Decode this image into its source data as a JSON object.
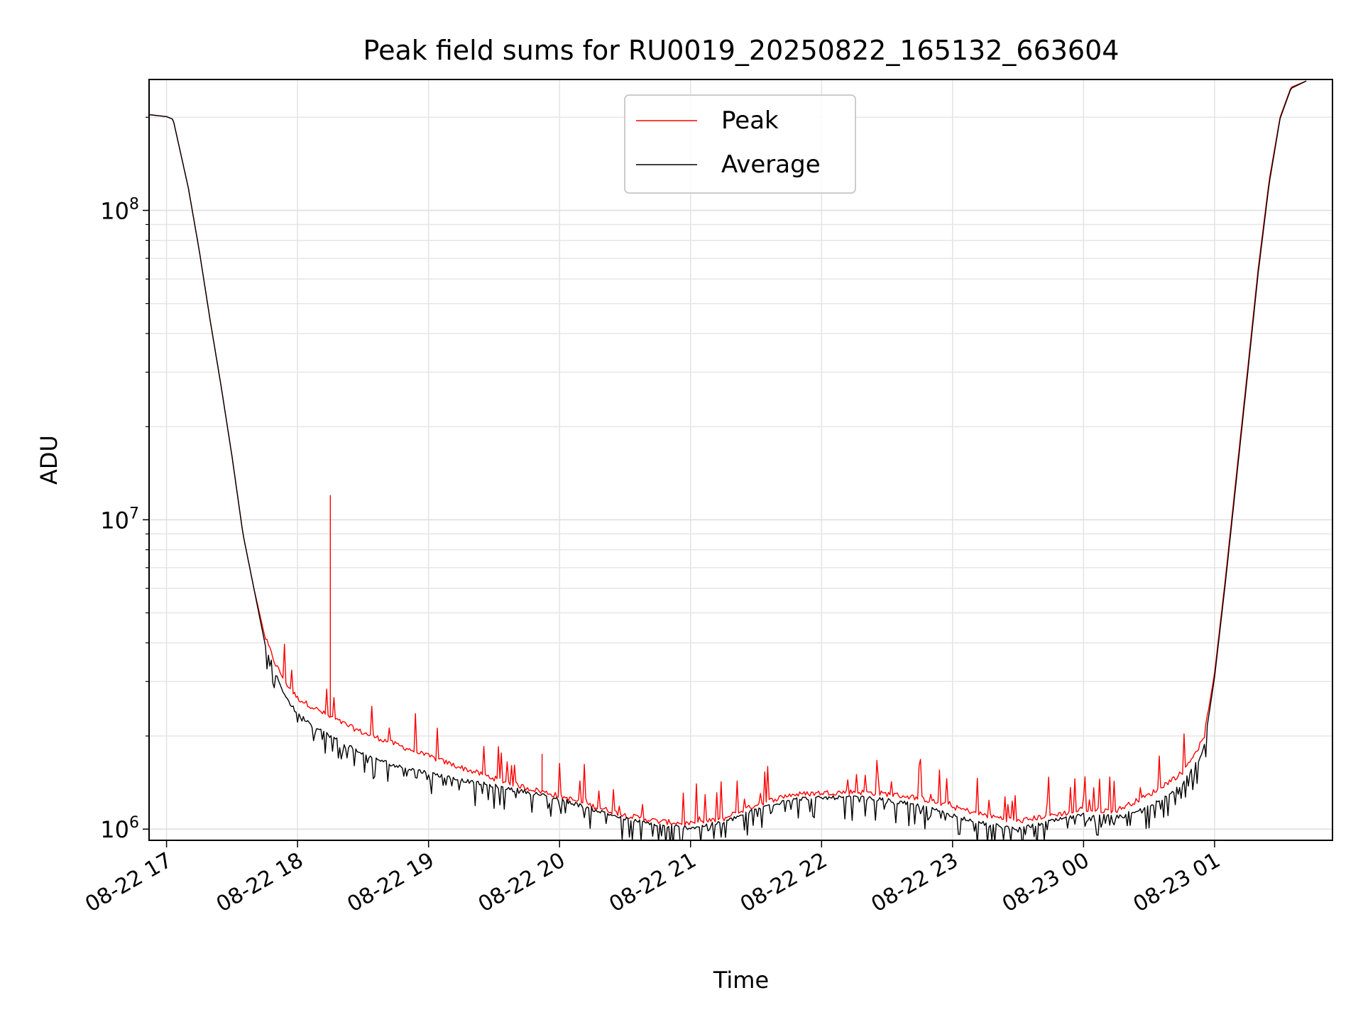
{
  "chart_data": {
    "type": "line",
    "title": "Peak field sums for RU0019_20250822_165132_663604",
    "xlabel": "Time",
    "ylabel": "ADU",
    "yscale": "log",
    "ylim": [
      920000,
      265000000
    ],
    "xlim": [
      "2025-08-22 16:52",
      "2025-08-23 01:54"
    ],
    "grid": "on (major and minor y)",
    "legend_position": "upper center",
    "x_ticks": [
      "08-22 17",
      "08-22 18",
      "08-22 19",
      "08-22 20",
      "08-22 21",
      "08-22 22",
      "08-22 23",
      "08-23 00",
      "08-23 01"
    ],
    "y_ticks": [
      {
        "value": 1000000,
        "base": "10",
        "exp": "6"
      },
      {
        "value": 10000000,
        "base": "10",
        "exp": "7"
      },
      {
        "value": 100000000,
        "base": "10",
        "exp": "8"
      }
    ],
    "series": [
      {
        "name": "Peak",
        "color": "#ff0000",
        "points": [
          [
            "2025-08-22 16:52",
            204000000
          ],
          [
            "2025-08-22 17:00",
            201000000
          ],
          [
            "2025-08-22 17:03",
            197000000
          ],
          [
            "2025-08-22 17:10",
            118000000
          ],
          [
            "2025-08-22 17:15",
            74000000
          ],
          [
            "2025-08-22 17:20",
            44000000
          ],
          [
            "2025-08-22 17:25",
            27000000
          ],
          [
            "2025-08-22 17:30",
            16000000
          ],
          [
            "2025-08-22 17:35",
            9000000
          ],
          [
            "2025-08-22 17:40",
            6000000
          ],
          [
            "2025-08-22 17:45",
            4200000
          ],
          [
            "2025-08-22 17:50",
            3400000
          ],
          [
            "2025-08-22 17:55",
            2950000
          ],
          [
            "2025-08-22 18:00",
            2650000
          ],
          [
            "2025-08-22 18:15",
            2300000
          ],
          [
            "2025-08-22 18:30",
            2050000
          ],
          [
            "2025-08-22 18:45",
            1880000
          ],
          [
            "2025-08-22 19:00",
            1720000
          ],
          [
            "2025-08-22 19:15",
            1580000
          ],
          [
            "2025-08-22 19:30",
            1460000
          ],
          [
            "2025-08-22 19:45",
            1360000
          ],
          [
            "2025-08-22 20:00",
            1280000
          ],
          [
            "2025-08-22 20:15",
            1190000
          ],
          [
            "2025-08-22 20:30",
            1110000
          ],
          [
            "2025-08-22 20:45",
            1060000
          ],
          [
            "2025-08-22 21:00",
            1040000
          ],
          [
            "2025-08-22 21:15",
            1080000
          ],
          [
            "2025-08-22 21:30",
            1200000
          ],
          [
            "2025-08-22 21:45",
            1290000
          ],
          [
            "2025-08-22 22:00",
            1310000
          ],
          [
            "2025-08-22 22:15",
            1320000
          ],
          [
            "2025-08-22 22:30",
            1300000
          ],
          [
            "2025-08-22 22:45",
            1260000
          ],
          [
            "2025-08-22 23:00",
            1180000
          ],
          [
            "2025-08-22 23:15",
            1110000
          ],
          [
            "2025-08-22 23:30",
            1060000
          ],
          [
            "2025-08-22 23:45",
            1110000
          ],
          [
            "2025-08-23 00:00",
            1150000
          ],
          [
            "2025-08-23 00:15",
            1150000
          ],
          [
            "2025-08-23 00:30",
            1290000
          ],
          [
            "2025-08-23 00:45",
            1520000
          ],
          [
            "2025-08-23 00:55",
            1950000
          ],
          [
            "2025-08-23 01:00",
            3200000
          ],
          [
            "2025-08-23 01:05",
            6500000
          ],
          [
            "2025-08-23 01:10",
            14000000
          ],
          [
            "2025-08-23 01:15",
            30000000
          ],
          [
            "2025-08-23 01:20",
            65000000
          ],
          [
            "2025-08-23 01:25",
            125000000
          ],
          [
            "2025-08-23 01:30",
            200000000
          ],
          [
            "2025-08-23 01:35",
            250000000
          ],
          [
            "2025-08-23 01:42",
            262000000
          ]
        ],
        "notable_spikes": [
          [
            "2025-08-22 18:15",
            12000000
          ],
          [
            "2025-08-22 19:52",
            1750000
          ]
        ]
      },
      {
        "name": "Average",
        "color": "#000000",
        "points": [
          [
            "2025-08-22 16:52",
            204000000
          ],
          [
            "2025-08-22 17:00",
            201000000
          ],
          [
            "2025-08-22 17:03",
            197000000
          ],
          [
            "2025-08-22 17:10",
            118000000
          ],
          [
            "2025-08-22 17:15",
            74000000
          ],
          [
            "2025-08-22 17:20",
            44000000
          ],
          [
            "2025-08-22 17:25",
            27000000
          ],
          [
            "2025-08-22 17:30",
            16000000
          ],
          [
            "2025-08-22 17:35",
            9000000
          ],
          [
            "2025-08-22 17:40",
            6000000
          ],
          [
            "2025-08-22 17:45",
            4000000
          ],
          [
            "2025-08-22 17:50",
            3150000
          ],
          [
            "2025-08-22 17:55",
            2650000
          ],
          [
            "2025-08-22 18:00",
            2350000
          ],
          [
            "2025-08-22 18:15",
            2000000
          ],
          [
            "2025-08-22 18:30",
            1750000
          ],
          [
            "2025-08-22 18:45",
            1600000
          ],
          [
            "2025-08-22 19:00",
            1520000
          ],
          [
            "2025-08-22 19:15",
            1440000
          ],
          [
            "2025-08-22 19:30",
            1380000
          ],
          [
            "2025-08-22 19:45",
            1320000
          ],
          [
            "2025-08-22 20:00",
            1250000
          ],
          [
            "2025-08-22 20:15",
            1160000
          ],
          [
            "2025-08-22 20:30",
            1080000
          ],
          [
            "2025-08-22 20:45",
            1030000
          ],
          [
            "2025-08-22 21:00",
            1010000
          ],
          [
            "2025-08-22 21:15",
            1050000
          ],
          [
            "2025-08-22 21:30",
            1160000
          ],
          [
            "2025-08-22 21:45",
            1250000
          ],
          [
            "2025-08-22 22:00",
            1260000
          ],
          [
            "2025-08-22 22:15",
            1270000
          ],
          [
            "2025-08-22 22:30",
            1240000
          ],
          [
            "2025-08-22 22:45",
            1190000
          ],
          [
            "2025-08-22 23:00",
            1110000
          ],
          [
            "2025-08-22 23:15",
            1040000
          ],
          [
            "2025-08-22 23:30",
            1000000
          ],
          [
            "2025-08-22 23:45",
            1060000
          ],
          [
            "2025-08-23 00:00",
            1110000
          ],
          [
            "2025-08-23 00:15",
            1100000
          ],
          [
            "2025-08-23 00:30",
            1180000
          ],
          [
            "2025-08-23 00:45",
            1380000
          ],
          [
            "2025-08-23 00:55",
            1800000
          ],
          [
            "2025-08-23 01:00",
            3100000
          ],
          [
            "2025-08-23 01:05",
            6300000
          ],
          [
            "2025-08-23 01:10",
            13500000
          ],
          [
            "2025-08-23 01:15",
            29000000
          ],
          [
            "2025-08-23 01:20",
            63000000
          ],
          [
            "2025-08-23 01:25",
            122000000
          ],
          [
            "2025-08-23 01:30",
            198000000
          ],
          [
            "2025-08-23 01:35",
            248000000
          ],
          [
            "2025-08-23 01:42",
            262000000
          ]
        ]
      }
    ]
  }
}
